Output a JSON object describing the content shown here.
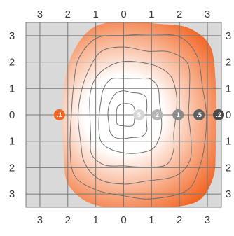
{
  "chart_data": {
    "type": "contour",
    "title": "",
    "xlabel": "",
    "ylabel": "",
    "xlim": [
      -3.5,
      3.5
    ],
    "ylim": [
      -3.5,
      3.5
    ],
    "grid": true,
    "x_ticks": [
      -3,
      -2,
      -1,
      0,
      1,
      2,
      3
    ],
    "y_ticks": [
      3,
      2,
      1,
      0,
      -1,
      -2,
      -3
    ],
    "x_tick_labels": [
      "3",
      "2",
      "1",
      "0",
      "1",
      "2",
      "3"
    ],
    "y_tick_labels": [
      "3",
      "2",
      "1",
      "0",
      "1",
      "2",
      "3"
    ],
    "background_color": "#d9d9d9",
    "grid_color": "#7a7a7a",
    "fill_colors": {
      "inner": "#ffffff",
      "outer": "#f26522"
    },
    "contour_color": "#6f6f6f",
    "field_center": [
      0.0,
      0.0
    ],
    "outer_boundary": [
      {
        "x": 0.0,
        "y": 3.55
      },
      {
        "x": 1.2,
        "y": 3.45
      },
      {
        "x": 2.3,
        "y": 3.3
      },
      {
        "x": 3.1,
        "y": 2.6
      },
      {
        "x": 3.3,
        "y": 1.2
      },
      {
        "x": 3.32,
        "y": 0.0
      },
      {
        "x": 3.3,
        "y": -1.3
      },
      {
        "x": 3.2,
        "y": -2.4
      },
      {
        "x": 2.6,
        "y": -3.3
      },
      {
        "x": 1.1,
        "y": -3.55
      },
      {
        "x": 0.0,
        "y": -3.55
      },
      {
        "x": -1.2,
        "y": -3.35
      },
      {
        "x": -2.0,
        "y": -2.6
      },
      {
        "x": -2.15,
        "y": -1.4
      },
      {
        "x": -2.2,
        "y": 0.0
      },
      {
        "x": -2.1,
        "y": 1.3
      },
      {
        "x": -1.8,
        "y": 2.4
      },
      {
        "x": -1.1,
        "y": 3.3
      }
    ],
    "contour_scales": [
      0.12,
      0.25,
      0.4,
      0.56,
      0.72,
      0.87
    ],
    "points": [
      {
        "x": -2.3,
        "y": 0,
        "label": ".1",
        "color": "#f26522"
      },
      {
        "x": 0.55,
        "y": 0,
        "label": "5",
        "color": "#d6d6d6"
      },
      {
        "x": 1.2,
        "y": 0,
        "label": "2",
        "color": "#b5b5b5"
      },
      {
        "x": 1.95,
        "y": 0,
        "label": "1",
        "color": "#8a8a8a"
      },
      {
        "x": 2.7,
        "y": 0,
        "label": ".5",
        "color": "#5f5f5f"
      },
      {
        "x": 3.4,
        "y": 0,
        "label": ".2",
        "color": "#4a4a4a"
      }
    ]
  }
}
